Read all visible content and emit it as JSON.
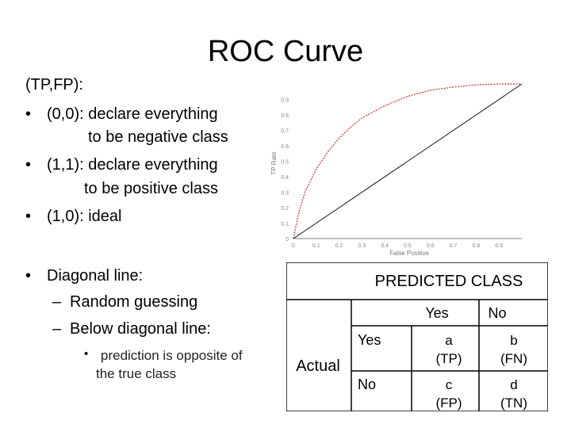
{
  "slide": {
    "title": "ROC Curve"
  },
  "left_text": {
    "heading": "(TP,FP):",
    "bullets": [
      {
        "line1": "(0,0): declare everything",
        "line2": "to be negative class"
      },
      {
        "line1": "(1,1): declare everything",
        "line2": "to be positive class"
      },
      {
        "line1": "(1,0): ideal",
        "line2": ""
      }
    ],
    "diagonal": {
      "label": "Diagonal line:",
      "subitems": [
        "Random guessing",
        "Below diagonal line:"
      ],
      "note_line1": "prediction is opposite of",
      "note_line2": "the true class"
    }
  },
  "chart_data": {
    "type": "line",
    "xlabel": "False Positive",
    "ylabel": "TP Rate",
    "xlim": [
      0,
      1
    ],
    "ylim": [
      0,
      1
    ],
    "x_ticks": [
      "0",
      "0.1",
      "0.2",
      "0.3",
      "0.4",
      "0.5",
      "0.6",
      "0.7",
      "0.8",
      "0.9"
    ],
    "y_ticks": [
      "0",
      "0.1",
      "0.2",
      "0.3",
      "0.4",
      "0.5",
      "0.6",
      "0.7",
      "0.8",
      "0.9"
    ],
    "series": [
      {
        "x": [
          0,
          0.02,
          0.05,
          0.1,
          0.15,
          0.2,
          0.25,
          0.3,
          0.35,
          0.4,
          0.5,
          0.6,
          0.7,
          0.8,
          0.9,
          1.0
        ],
        "y": [
          0,
          0.15,
          0.3,
          0.45,
          0.56,
          0.65,
          0.72,
          0.78,
          0.82,
          0.86,
          0.92,
          0.96,
          0.98,
          0.995,
          1.0,
          1.0
        ],
        "color": "#d0302a"
      },
      {
        "x": [
          0,
          1
        ],
        "y": [
          0,
          1
        ],
        "color": "#111111"
      }
    ]
  },
  "confusion": {
    "predicted_header": "PREDICTED CLASS",
    "actual_label": "Actual",
    "col_labels": [
      "Yes",
      "No"
    ],
    "row_labels": [
      "Yes",
      "No"
    ],
    "cells": [
      [
        {
          "letter": "a",
          "code": "(TP)"
        },
        {
          "letter": "b",
          "code": "(FN)"
        }
      ],
      [
        {
          "letter": "c",
          "code": "(FP)"
        },
        {
          "letter": "d",
          "code": "(TN)"
        }
      ]
    ]
  }
}
